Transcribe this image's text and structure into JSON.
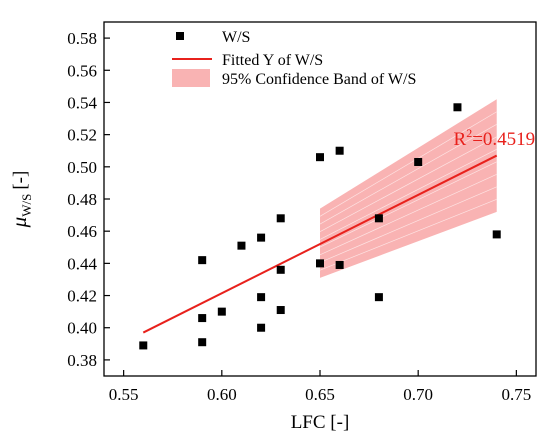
{
  "chart_data": {
    "type": "scatter",
    "title": "",
    "xlabel": "LFC [-]",
    "ylabel_main": "μ",
    "ylabel_sub": "W/S",
    "ylabel_unit": "[-]",
    "xlim": [
      0.54,
      0.76
    ],
    "ylim": [
      0.37,
      0.59
    ],
    "x_ticks": [
      0.55,
      0.6,
      0.65,
      0.7,
      0.75
    ],
    "x_tick_labels": [
      "0.55",
      "0.60",
      "0.65",
      "0.70",
      "0.75"
    ],
    "y_ticks": [
      0.38,
      0.4,
      0.42,
      0.44,
      0.46,
      0.48,
      0.5,
      0.52,
      0.54,
      0.56,
      0.58
    ],
    "y_tick_labels": [
      "0.38",
      "0.40",
      "0.42",
      "0.44",
      "0.46",
      "0.48",
      "0.50",
      "0.52",
      "0.54",
      "0.56",
      "0.58"
    ],
    "grid": false,
    "legend_position": "top-left",
    "series": [
      {
        "name": "W/S",
        "kind": "scatter",
        "color": "#000000",
        "marker": "square",
        "points": [
          {
            "x": 0.56,
            "y": 0.389
          },
          {
            "x": 0.59,
            "y": 0.442
          },
          {
            "x": 0.59,
            "y": 0.406
          },
          {
            "x": 0.59,
            "y": 0.391
          },
          {
            "x": 0.6,
            "y": 0.41
          },
          {
            "x": 0.61,
            "y": 0.451
          },
          {
            "x": 0.62,
            "y": 0.456
          },
          {
            "x": 0.62,
            "y": 0.419
          },
          {
            "x": 0.62,
            "y": 0.4
          },
          {
            "x": 0.63,
            "y": 0.468
          },
          {
            "x": 0.63,
            "y": 0.436
          },
          {
            "x": 0.63,
            "y": 0.411
          },
          {
            "x": 0.65,
            "y": 0.506
          },
          {
            "x": 0.65,
            "y": 0.44
          },
          {
            "x": 0.66,
            "y": 0.51
          },
          {
            "x": 0.66,
            "y": 0.439
          },
          {
            "x": 0.68,
            "y": 0.468
          },
          {
            "x": 0.68,
            "y": 0.419
          },
          {
            "x": 0.7,
            "y": 0.503
          },
          {
            "x": 0.72,
            "y": 0.537
          },
          {
            "x": 0.74,
            "y": 0.458
          }
        ]
      },
      {
        "name": "Fitted Y of W/S",
        "kind": "line",
        "color": "#e8211c",
        "points": [
          {
            "x": 0.56,
            "y": 0.397
          },
          {
            "x": 0.74,
            "y": 0.507
          }
        ]
      },
      {
        "name": "95% Confidence Band of W/S",
        "kind": "band",
        "color": "#f9b3b3",
        "x": [
          0.65,
          0.74
        ],
        "lower": [
          0.431,
          0.472
        ],
        "upper": [
          0.474,
          0.542
        ]
      }
    ],
    "annotation": {
      "base": "R",
      "sup": "2",
      "rest": "=0.4519",
      "color": "#e8211c",
      "x": 0.718,
      "y": 0.518
    }
  }
}
